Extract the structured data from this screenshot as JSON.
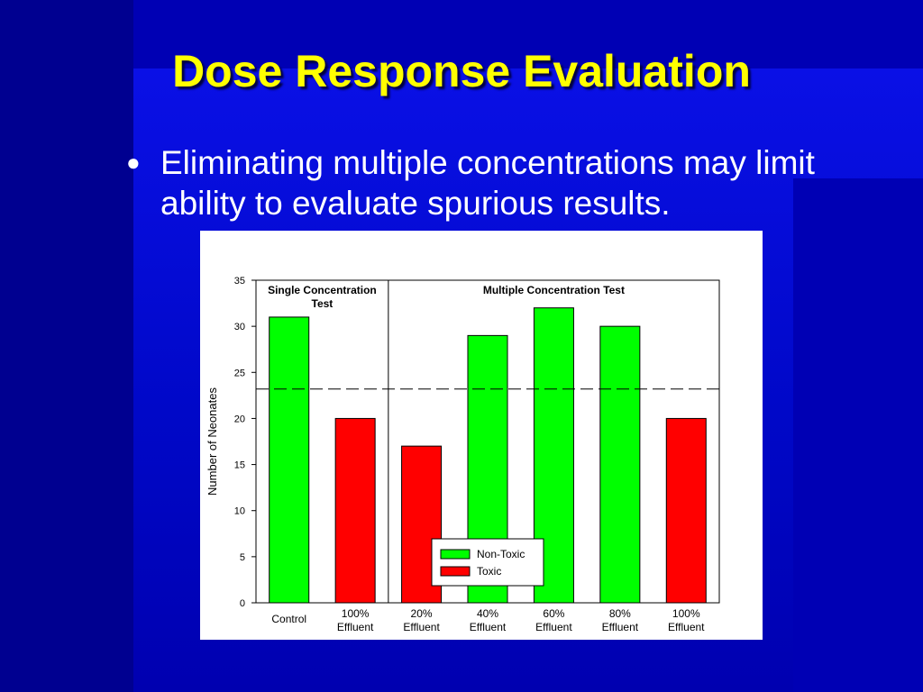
{
  "slide": {
    "title": "Dose Response Evaluation",
    "bullet": "Eliminating multiple concentrations may limit ability to evaluate spurious results."
  },
  "colors": {
    "background": "#0000a8",
    "title": "#ffff00",
    "non_toxic": "#00ff00",
    "toxic": "#ff0000"
  },
  "chart_data": {
    "type": "bar",
    "ylabel": "Number of Neonates",
    "ylim": [
      0,
      35
    ],
    "yticks": [
      0,
      5,
      10,
      15,
      20,
      25,
      30,
      35
    ],
    "categories": [
      [
        "Control"
      ],
      [
        "100%",
        "Effluent"
      ],
      [
        "20%",
        "Effluent"
      ],
      [
        "40%",
        "Effluent"
      ],
      [
        "60%",
        "Effluent"
      ],
      [
        "80%",
        "Effluent"
      ],
      [
        "100%",
        "Effluent"
      ]
    ],
    "values": [
      31,
      20,
      17,
      29,
      32,
      30,
      20
    ],
    "classes": [
      "Non-Toxic",
      "Toxic",
      "Toxic",
      "Non-Toxic",
      "Non-Toxic",
      "Non-Toxic",
      "Toxic"
    ],
    "legend": [
      "Non-Toxic",
      "Toxic"
    ],
    "legend_position": "bottom-center",
    "reference_line": 23.2,
    "sections": [
      {
        "label": [
          "Single Concentration",
          "Test"
        ],
        "categories": [
          0,
          1
        ]
      },
      {
        "label": [
          "Multiple Concentration Test"
        ],
        "categories": [
          2,
          3,
          4,
          5,
          6
        ]
      }
    ],
    "grid": false
  }
}
